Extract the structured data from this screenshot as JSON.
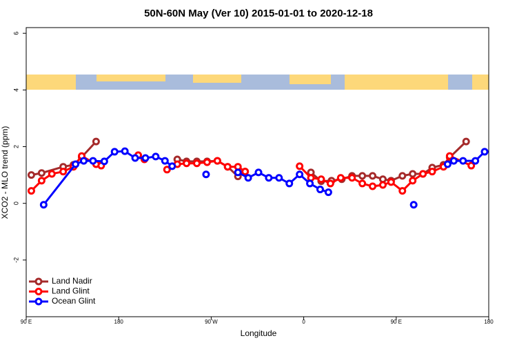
{
  "chart_data": {
    "type": "line",
    "title": "50N-60N May (Ver 10)   2015-01-01 to 2020-12-18",
    "x_label": "Longitude",
    "y_label": "XCO2 - MLO trend (ppm)",
    "xlim": [
      90,
      540
    ],
    "ylim": [
      -4,
      6.2
    ],
    "xticks": [
      {
        "value": 90,
        "label": "90 E"
      },
      {
        "value": 180,
        "label": "180"
      },
      {
        "value": 270,
        "label": "90 W"
      },
      {
        "value": 360,
        "label": "0"
      },
      {
        "value": 450,
        "label": "90 E"
      },
      {
        "value": 540,
        "label": "180"
      }
    ],
    "yticks": [
      -2,
      0,
      2,
      4,
      6
    ],
    "legend": "bottom-left",
    "series": [
      {
        "name": "Land Nadir",
        "color": "#a52a2a",
        "x": [
          95,
          105,
          126,
          136,
          144,
          158,
          200,
          237,
          246,
          256,
          266,
          276,
          286,
          296,
          303,
          330,
          367,
          377,
          387,
          397,
          407,
          417,
          427,
          437,
          445,
          456,
          466,
          476,
          485,
          496,
          502,
          518
        ],
        "values": [
          1.0,
          1.07,
          1.29,
          1.36,
          1.63,
          2.18,
          null,
          1.55,
          1.48,
          1.48,
          1.48,
          1.5,
          1.29,
          0.95,
          1.12,
          null,
          1.09,
          0.78,
          0.8,
          0.85,
          0.97,
          0.97,
          0.97,
          0.85,
          0.8,
          0.97,
          1.04,
          1.04,
          1.26,
          1.36,
          1.62,
          2.18
        ]
      },
      {
        "name": "Land Glint",
        "color": "#ff0000",
        "x": [
          95,
          105,
          115,
          126,
          136,
          144,
          158,
          163,
          180,
          199,
          205,
          215,
          227,
          237,
          246,
          256,
          266,
          276,
          286,
          296,
          303,
          330,
          356,
          367,
          377,
          386,
          396,
          407,
          417,
          427,
          437,
          445,
          456,
          466,
          476,
          485,
          496,
          502,
          523
        ],
        "values": [
          0.44,
          0.8,
          1.04,
          1.12,
          1.29,
          1.67,
          1.38,
          1.33,
          null,
          1.7,
          1.55,
          null,
          1.19,
          1.38,
          1.41,
          1.41,
          1.45,
          1.5,
          1.29,
          1.29,
          1.12,
          null,
          1.31,
          0.9,
          0.85,
          0.7,
          0.9,
          0.9,
          0.7,
          0.6,
          0.65,
          0.75,
          0.44,
          0.8,
          1.04,
          1.12,
          1.29,
          1.67,
          1.33
        ]
      },
      {
        "name": "Ocean Glint",
        "color": "#0000ff",
        "x": [
          107,
          138,
          146,
          155,
          166,
          176,
          186,
          196,
          206,
          216,
          225,
          232,
          250,
          265,
          280,
          296,
          306,
          316,
          326,
          336,
          346,
          356,
          366,
          376,
          384,
          420,
          467,
          480,
          500,
          506,
          515,
          527,
          536
        ],
        "values": [
          -0.05,
          1.38,
          1.5,
          1.5,
          1.48,
          1.82,
          1.84,
          1.6,
          1.6,
          1.65,
          1.5,
          1.31,
          null,
          1.02,
          null,
          1.09,
          0.9,
          1.09,
          0.9,
          0.9,
          0.7,
          1.02,
          0.7,
          0.49,
          0.39,
          null,
          -0.05,
          null,
          1.38,
          1.5,
          1.5,
          1.5,
          1.82
        ]
      }
    ]
  }
}
